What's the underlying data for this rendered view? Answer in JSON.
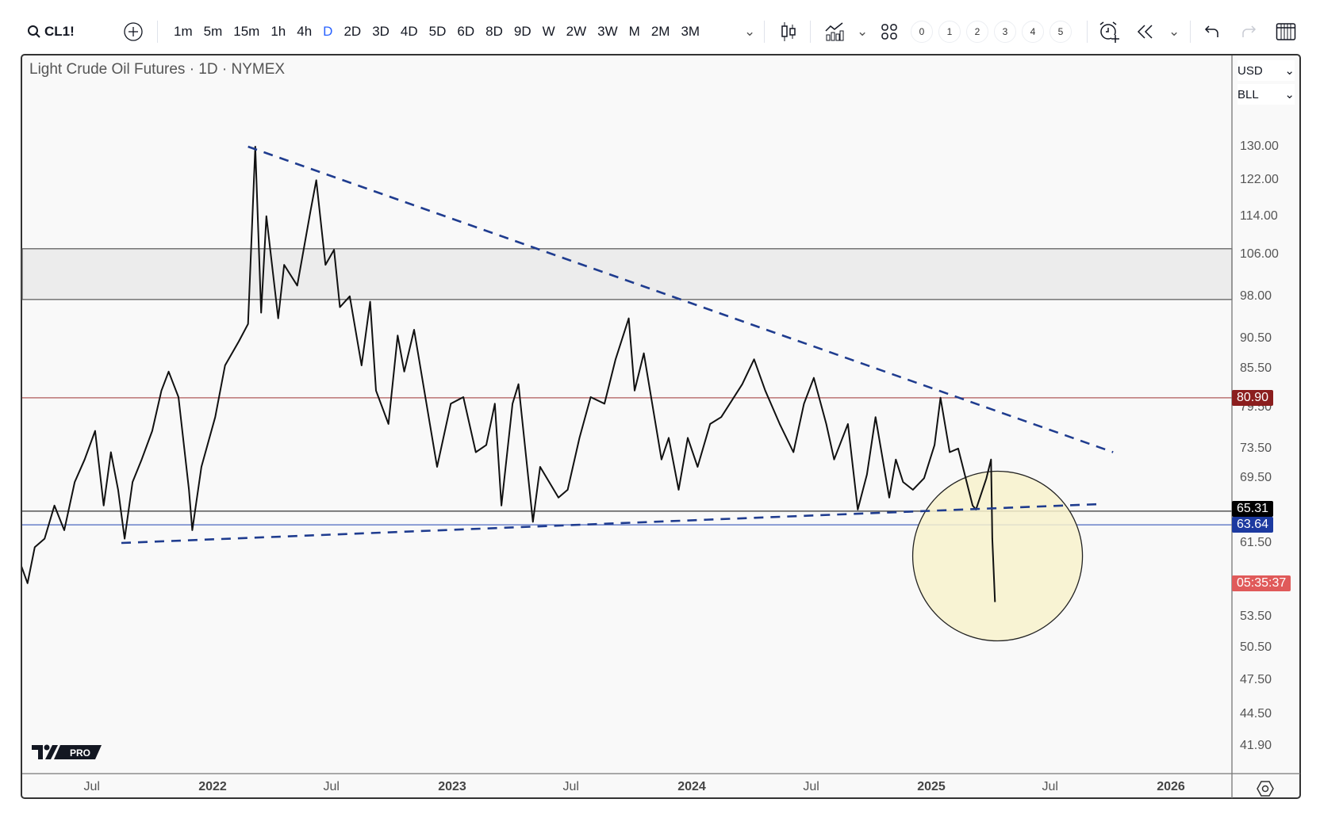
{
  "toolbar": {
    "symbol": "CL1!",
    "timeframes": [
      "1m",
      "5m",
      "15m",
      "1h",
      "4h",
      "D",
      "2D",
      "3D",
      "4D",
      "5D",
      "6D",
      "8D",
      "9D",
      "W",
      "2W",
      "3W",
      "M",
      "2M",
      "3M"
    ],
    "active_timeframe": "D",
    "layout_numbers": [
      "0",
      "1",
      "2",
      "3",
      "4",
      "5"
    ]
  },
  "legend": {
    "title": "Light Crude Oil Futures · 1D · NYMEX"
  },
  "price_scale": {
    "currency": "USD",
    "unit": "BLL"
  },
  "badges": {
    "resistance": {
      "text": "80.90",
      "color": "#8b1e1e"
    },
    "last_price": {
      "text": "65.31",
      "color": "#000000"
    },
    "support": {
      "text": "63.64",
      "color": "#1c3aa0"
    },
    "countdown": {
      "text": "05:35:37",
      "color": "#e05a5a"
    }
  },
  "logo": {
    "text": "PRO"
  },
  "colors": {
    "trendline": "#1f3c8f",
    "resistance": "#b05a5a",
    "last": "#333333",
    "support": "#4a68c0",
    "zone": "#ececec",
    "highlight": "#f8f2cc"
  },
  "chart_data": {
    "type": "line",
    "scale": "log",
    "ylim": [
      40,
      140
    ],
    "xlim": [
      "2021-03-15",
      "2026-06-01"
    ],
    "y_ticks": [
      "130.00",
      "122.00",
      "114.00",
      "106.00",
      "98.00",
      "90.50",
      "85.50",
      "79.50",
      "73.50",
      "69.50",
      "61.50",
      "53.50",
      "50.50",
      "47.50",
      "44.50",
      "41.90"
    ],
    "x_ticks": [
      {
        "label": "Jul",
        "date": "2021-07-01",
        "year": false
      },
      {
        "label": "2022",
        "date": "2022-01-01",
        "year": true
      },
      {
        "label": "Jul",
        "date": "2022-07-01",
        "year": false
      },
      {
        "label": "2023",
        "date": "2023-01-01",
        "year": true
      },
      {
        "label": "Jul",
        "date": "2023-07-01",
        "year": false
      },
      {
        "label": "2024",
        "date": "2024-01-01",
        "year": true
      },
      {
        "label": "Jul",
        "date": "2024-07-01",
        "year": false
      },
      {
        "label": "2025",
        "date": "2025-01-01",
        "year": true
      },
      {
        "label": "Jul",
        "date": "2025-07-01",
        "year": false
      },
      {
        "label": "2026",
        "date": "2026-01-01",
        "year": true
      }
    ],
    "series": [
      {
        "points": [
          [
            "2021-03-15",
            59
          ],
          [
            "2021-03-25",
            57
          ],
          [
            "2021-04-05",
            61
          ],
          [
            "2021-04-20",
            62
          ],
          [
            "2021-05-05",
            66
          ],
          [
            "2021-05-20",
            63
          ],
          [
            "2021-06-05",
            69
          ],
          [
            "2021-06-20",
            72
          ],
          [
            "2021-07-06",
            76
          ],
          [
            "2021-07-19",
            66
          ],
          [
            "2021-07-30",
            73
          ],
          [
            "2021-08-10",
            68
          ],
          [
            "2021-08-20",
            62
          ],
          [
            "2021-09-01",
            69
          ],
          [
            "2021-09-15",
            72
          ],
          [
            "2021-10-01",
            76
          ],
          [
            "2021-10-15",
            82
          ],
          [
            "2021-10-26",
            85
          ],
          [
            "2021-11-10",
            81
          ],
          [
            "2021-11-26",
            68
          ],
          [
            "2021-12-01",
            63
          ],
          [
            "2021-12-15",
            71
          ],
          [
            "2022-01-05",
            78
          ],
          [
            "2022-01-20",
            86
          ],
          [
            "2022-02-10",
            90
          ],
          [
            "2022-02-24",
            93
          ],
          [
            "2022-03-07",
            130
          ],
          [
            "2022-03-16",
            95
          ],
          [
            "2022-03-24",
            114
          ],
          [
            "2022-04-11",
            94
          ],
          [
            "2022-04-20",
            104
          ],
          [
            "2022-05-10",
            100
          ],
          [
            "2022-05-30",
            115
          ],
          [
            "2022-06-08",
            122
          ],
          [
            "2022-06-22",
            104
          ],
          [
            "2022-07-05",
            107
          ],
          [
            "2022-07-14",
            96
          ],
          [
            "2022-07-29",
            98
          ],
          [
            "2022-08-16",
            86
          ],
          [
            "2022-08-29",
            97
          ],
          [
            "2022-09-07",
            82
          ],
          [
            "2022-09-26",
            77
          ],
          [
            "2022-10-10",
            91
          ],
          [
            "2022-10-20",
            85
          ],
          [
            "2022-11-04",
            92
          ],
          [
            "2022-11-28",
            77
          ],
          [
            "2022-12-09",
            71
          ],
          [
            "2022-12-30",
            80
          ],
          [
            "2023-01-18",
            81
          ],
          [
            "2023-02-06",
            73
          ],
          [
            "2023-02-22",
            74
          ],
          [
            "2023-03-07",
            80
          ],
          [
            "2023-03-17",
            66
          ],
          [
            "2023-04-03",
            80
          ],
          [
            "2023-04-12",
            83
          ],
          [
            "2023-05-04",
            64
          ],
          [
            "2023-05-15",
            71
          ],
          [
            "2023-06-12",
            67
          ],
          [
            "2023-06-26",
            68
          ],
          [
            "2023-07-14",
            75
          ],
          [
            "2023-07-31",
            81
          ],
          [
            "2023-08-21",
            80
          ],
          [
            "2023-09-07",
            87
          ],
          [
            "2023-09-27",
            94
          ],
          [
            "2023-10-06",
            82
          ],
          [
            "2023-10-20",
            88
          ],
          [
            "2023-11-16",
            72
          ],
          [
            "2023-11-27",
            75
          ],
          [
            "2023-12-12",
            68
          ],
          [
            "2023-12-26",
            75
          ],
          [
            "2024-01-10",
            71
          ],
          [
            "2024-01-29",
            77
          ],
          [
            "2024-02-15",
            78
          ],
          [
            "2024-03-18",
            83
          ],
          [
            "2024-04-05",
            87
          ],
          [
            "2024-04-22",
            82
          ],
          [
            "2024-05-14",
            77
          ],
          [
            "2024-06-04",
            73
          ],
          [
            "2024-06-20",
            80
          ],
          [
            "2024-07-05",
            84
          ],
          [
            "2024-07-24",
            77
          ],
          [
            "2024-08-05",
            72
          ],
          [
            "2024-08-26",
            77
          ],
          [
            "2024-09-10",
            65.5
          ],
          [
            "2024-09-24",
            70
          ],
          [
            "2024-10-07",
            78
          ],
          [
            "2024-10-28",
            67
          ],
          [
            "2024-11-07",
            72
          ],
          [
            "2024-11-18",
            69
          ],
          [
            "2024-12-03",
            68
          ],
          [
            "2024-12-20",
            69.5
          ],
          [
            "2025-01-06",
            74
          ],
          [
            "2025-01-15",
            80.9
          ],
          [
            "2025-01-29",
            73
          ],
          [
            "2025-02-11",
            73.5
          ],
          [
            "2025-03-05",
            66
          ],
          [
            "2025-03-10",
            65.5
          ],
          [
            "2025-03-26",
            69.5
          ],
          [
            "2025-04-02",
            72
          ],
          [
            "2025-04-03",
            67
          ],
          [
            "2025-04-04",
            62
          ],
          [
            "2025-04-08",
            55
          ]
        ]
      }
    ],
    "horizontal_lines": [
      {
        "name": "resistance",
        "value": 80.9,
        "color": "#b05a5a"
      },
      {
        "name": "last-price",
        "value": 65.31,
        "color": "#333333"
      },
      {
        "name": "support",
        "value": 63.64,
        "color": "#4a68c0"
      }
    ],
    "zone": {
      "from": 97.4,
      "to": 107.2
    },
    "trendlines": [
      {
        "name": "upper-trendline",
        "from": [
          "2022-02-24",
          130
        ],
        "to": [
          "2025-10-05",
          73
        ]
      },
      {
        "name": "lower-trendline",
        "from": [
          "2021-08-15",
          61.5
        ],
        "to": [
          "2025-09-20",
          66.2
        ]
      }
    ],
    "highlight_circle": {
      "center": [
        "2025-04-12",
        60
      ]
    }
  }
}
